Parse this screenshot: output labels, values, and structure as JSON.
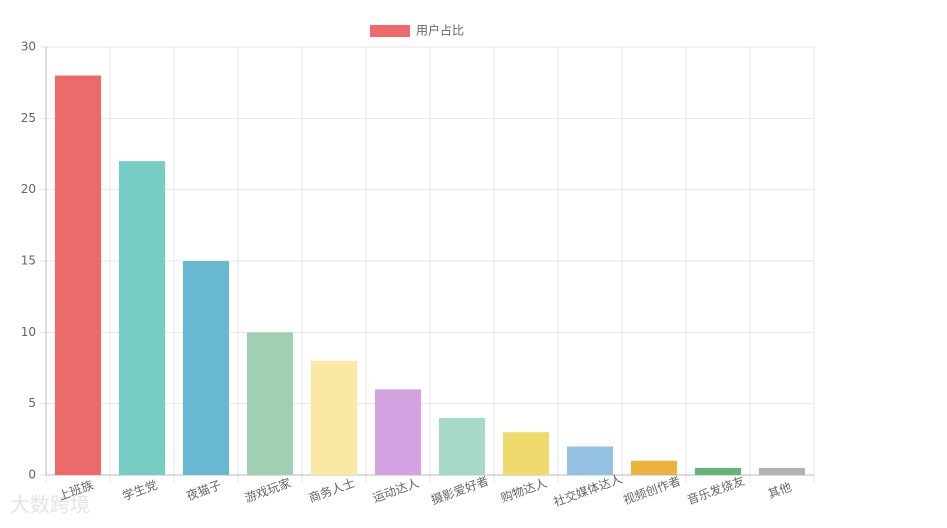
{
  "chart_data": {
    "type": "bar",
    "categories": [
      "上班族",
      "学生党",
      "夜猫子",
      "游戏玩家",
      "商务人士",
      "运动达人",
      "摄影爱好者",
      "购物达人",
      "社交媒体达人",
      "视频创作者",
      "音乐发烧友",
      "其他"
    ],
    "series": [
      {
        "name": "用户占比",
        "color": "#ef6b6b",
        "values": [
          28,
          22,
          15,
          10,
          8,
          6,
          4,
          3,
          2,
          1,
          0.5,
          0.5
        ],
        "colors": [
          "#ec6a6a",
          "#76cdc4",
          "#67b8d0",
          "#a1cfb4",
          "#fae8a4",
          "#d4a2e0",
          "#a7d9c8",
          "#f0da6e",
          "#93c2e2",
          "#ecb43f",
          "#65b37d",
          "#b2b2b2"
        ]
      }
    ],
    "ylim": [
      0,
      30
    ],
    "yticks": [
      0,
      5,
      10,
      15,
      20,
      25,
      30
    ],
    "grid": true,
    "watermark": "大数跨境"
  }
}
